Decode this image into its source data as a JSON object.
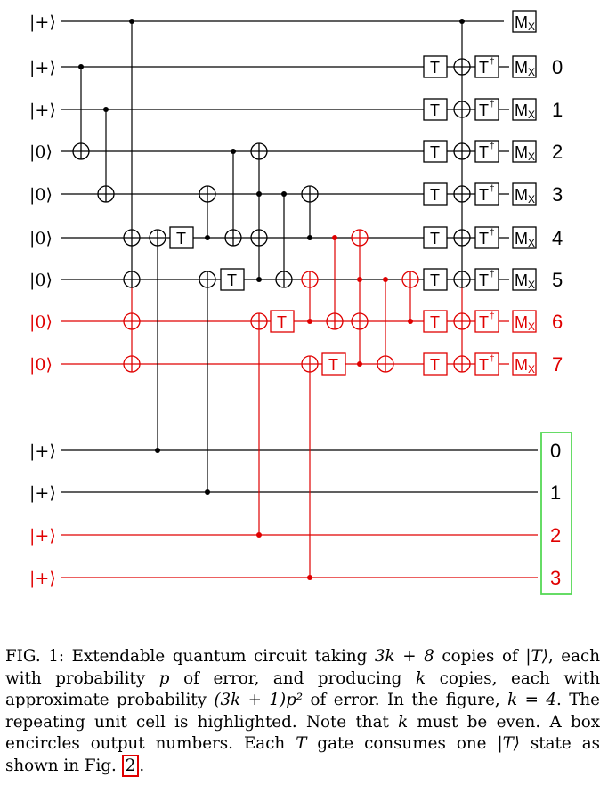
{
  "colors": {
    "normal": "#000000",
    "highlight": "#e00000",
    "output_box": "#55d855"
  },
  "wire_labels": [
    "|+⟩",
    "|+⟩",
    "|+⟩",
    "|0⟩",
    "|0⟩",
    "|0⟩",
    "|0⟩",
    "|0⟩",
    "|0⟩",
    "|+⟩",
    "|+⟩",
    "|+⟩",
    "|+⟩"
  ],
  "gate_labels": {
    "t": "T",
    "t_dagger": "T",
    "dagger": "†",
    "m": "M",
    "m_sub": "X"
  },
  "output_numbers": [
    "0",
    "1",
    "2",
    "3",
    "4",
    "5",
    "6",
    "7"
  ],
  "state_output_numbers": [
    "0",
    "1",
    "2",
    "3"
  ],
  "caption": {
    "p1": "FIG. 1: Extendable quantum circuit taking ",
    "m1": "3k + 8",
    "p2": " copies of ",
    "m2": "|T⟩",
    "p3": ", each with probability ",
    "m3": "p",
    "p4": " of error, and producing ",
    "m4": "k",
    "p5": " copies, each with approximate probability ",
    "m5": "(3k + 1)p²",
    "p6": " of error. In the figure, ",
    "m6": "k = 4",
    "p7": ". The repeating unit cell is highlighted. Note that ",
    "m7": "k",
    "p8": " must be even. A box encircles output numbers. Each ",
    "m8": "T",
    "p9": " gate consumes one ",
    "m9": "|T⟩",
    "p10": " state as shown in Fig. ",
    "ref": "2",
    "p11": "."
  }
}
